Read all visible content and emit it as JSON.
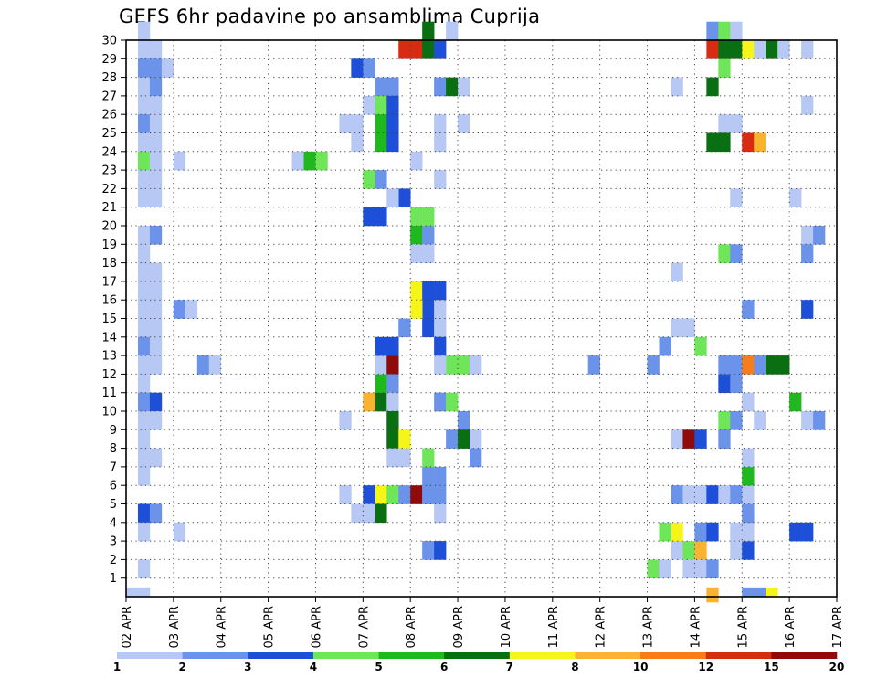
{
  "title": "GEFS 6hr padavine po ansamblima Cuprija",
  "chart_data": {
    "type": "heatmap",
    "title": "GEFS 6hr padavine po ansamblima Cuprija",
    "x_ticks": [
      "02 APR",
      "03 APR",
      "04 APR",
      "05 APR",
      "06 APR",
      "07 APR",
      "08 APR",
      "09 APR",
      "10 APR",
      "11 APR",
      "12 APR",
      "13 APR",
      "14 APR",
      "15 APR",
      "16 APR",
      "17 APR"
    ],
    "y_ticks": [
      1,
      2,
      3,
      4,
      5,
      6,
      7,
      8,
      9,
      10,
      11,
      12,
      13,
      14,
      15,
      16,
      17,
      18,
      19,
      20,
      21,
      22,
      23,
      24,
      25,
      26,
      27,
      28,
      29,
      30
    ],
    "steps_per_day": 4,
    "x_range_steps": [
      0,
      60
    ],
    "y_range_members": [
      0,
      30
    ],
    "grid": true,
    "colorbar": {
      "labels": [
        "1",
        "2",
        "3",
        "4",
        "5",
        "6",
        "7",
        "8",
        "10",
        "12",
        "15",
        "20"
      ],
      "colors": [
        "#b7c8f5",
        "#6b93ea",
        "#1e4fd8",
        "#6fe65a",
        "#1fb81f",
        "#0a6e12",
        "#f5f51a",
        "#f9b32e",
        "#f77c1c",
        "#d82c12",
        "#8f0a0a"
      ]
    },
    "cells": [
      [
        1,
        30,
        0
      ],
      [
        1,
        29,
        0
      ],
      [
        1,
        28,
        1
      ],
      [
        1,
        27,
        0
      ],
      [
        1,
        26,
        0
      ],
      [
        1,
        25,
        1
      ],
      [
        1,
        24,
        0
      ],
      [
        1,
        23,
        3
      ],
      [
        1,
        22,
        0
      ],
      [
        1,
        21,
        0
      ],
      [
        1,
        19,
        0
      ],
      [
        1,
        18,
        0
      ],
      [
        1,
        17,
        0
      ],
      [
        1,
        16,
        0
      ],
      [
        1,
        15,
        0
      ],
      [
        1,
        14,
        0
      ],
      [
        1,
        13,
        1
      ],
      [
        1,
        12,
        0
      ],
      [
        1,
        11,
        0
      ],
      [
        1,
        10,
        1
      ],
      [
        1,
        9,
        0
      ],
      [
        1,
        8,
        0
      ],
      [
        1,
        7,
        0
      ],
      [
        1,
        6,
        0
      ],
      [
        1,
        4,
        2
      ],
      [
        1,
        3,
        0
      ],
      [
        1,
        1,
        0
      ],
      [
        0,
        0,
        0
      ],
      [
        1,
        0,
        0
      ],
      [
        2,
        29,
        0
      ],
      [
        2,
        28,
        1
      ],
      [
        2,
        27,
        1
      ],
      [
        2,
        26,
        0
      ],
      [
        2,
        25,
        0
      ],
      [
        2,
        24,
        0
      ],
      [
        2,
        23,
        0
      ],
      [
        2,
        22,
        0
      ],
      [
        2,
        21,
        0
      ],
      [
        2,
        19,
        1
      ],
      [
        2,
        17,
        0
      ],
      [
        2,
        16,
        0
      ],
      [
        2,
        15,
        0
      ],
      [
        2,
        14,
        0
      ],
      [
        2,
        13,
        0
      ],
      [
        2,
        12,
        0
      ],
      [
        2,
        10,
        2
      ],
      [
        2,
        9,
        0
      ],
      [
        2,
        7,
        0
      ],
      [
        2,
        4,
        1
      ],
      [
        3,
        28,
        0
      ],
      [
        4,
        23,
        0
      ],
      [
        4,
        15,
        1
      ],
      [
        5,
        15,
        0
      ],
      [
        4,
        3,
        0
      ],
      [
        6,
        12,
        1
      ],
      [
        7,
        12,
        0
      ],
      [
        14,
        23,
        0
      ],
      [
        15,
        23,
        4
      ],
      [
        16,
        23,
        3
      ],
      [
        19,
        28,
        2
      ],
      [
        20,
        28,
        1
      ],
      [
        19,
        24,
        0
      ],
      [
        18,
        25,
        0
      ],
      [
        19,
        25,
        0
      ],
      [
        18,
        9,
        0
      ],
      [
        18,
        5,
        0
      ],
      [
        19,
        4,
        0
      ],
      [
        21,
        27,
        1
      ],
      [
        22,
        27,
        1
      ],
      [
        20,
        26,
        0
      ],
      [
        21,
        26,
        3
      ],
      [
        22,
        26,
        2
      ],
      [
        21,
        25,
        4
      ],
      [
        22,
        25,
        2
      ],
      [
        21,
        24,
        4
      ],
      [
        22,
        24,
        2
      ],
      [
        20,
        22,
        3
      ],
      [
        21,
        22,
        1
      ],
      [
        21,
        20,
        2
      ],
      [
        20,
        20,
        2
      ],
      [
        20,
        10,
        7
      ],
      [
        21,
        10,
        5
      ],
      [
        21,
        11,
        4
      ],
      [
        21,
        12,
        0
      ],
      [
        22,
        12,
        10
      ],
      [
        22,
        11,
        1
      ],
      [
        21,
        13,
        2
      ],
      [
        22,
        13,
        2
      ],
      [
        22,
        10,
        0
      ],
      [
        22,
        9,
        5
      ],
      [
        22,
        8,
        5
      ],
      [
        22,
        7,
        0
      ],
      [
        20,
        5,
        2
      ],
      [
        21,
        5,
        6
      ],
      [
        22,
        5,
        3
      ],
      [
        21,
        4,
        5
      ],
      [
        20,
        4,
        0
      ],
      [
        24,
        29,
        9
      ],
      [
        23,
        29,
        9
      ],
      [
        25,
        29,
        5
      ],
      [
        25,
        30,
        5
      ],
      [
        23,
        21,
        2
      ],
      [
        22,
        21,
        0
      ],
      [
        24,
        23,
        0
      ],
      [
        24,
        20,
        3
      ],
      [
        24,
        19,
        4
      ],
      [
        24,
        18,
        0
      ],
      [
        25,
        19,
        1
      ],
      [
        24,
        16,
        6
      ],
      [
        25,
        16,
        2
      ],
      [
        25,
        15,
        2
      ],
      [
        24,
        15,
        6
      ],
      [
        23,
        14,
        1
      ],
      [
        25,
        14,
        2
      ],
      [
        23,
        5,
        1
      ],
      [
        24,
        5,
        10
      ],
      [
        25,
        5,
        1
      ],
      [
        23,
        8,
        6
      ],
      [
        23,
        7,
        0
      ],
      [
        26,
        29,
        2
      ],
      [
        27,
        30,
        0
      ],
      [
        26,
        27,
        1
      ],
      [
        27,
        27,
        5
      ],
      [
        28,
        27,
        0
      ],
      [
        26,
        25,
        0
      ],
      [
        28,
        25,
        0
      ],
      [
        26,
        24,
        0
      ],
      [
        26,
        22,
        0
      ],
      [
        25,
        20,
        3
      ],
      [
        25,
        18,
        0
      ],
      [
        26,
        16,
        2
      ],
      [
        26,
        15,
        0
      ],
      [
        26,
        14,
        0
      ],
      [
        26,
        13,
        2
      ],
      [
        27,
        12,
        3
      ],
      [
        26,
        12,
        0
      ],
      [
        28,
        12,
        3
      ],
      [
        29,
        12,
        0
      ],
      [
        26,
        10,
        1
      ],
      [
        27,
        10,
        3
      ],
      [
        28,
        9,
        1
      ],
      [
        27,
        8,
        1
      ],
      [
        28,
        8,
        5
      ],
      [
        29,
        8,
        0
      ],
      [
        29,
        7,
        1
      ],
      [
        26,
        6,
        1
      ],
      [
        25,
        6,
        1
      ],
      [
        25,
        5,
        1
      ],
      [
        26,
        5,
        1
      ],
      [
        26,
        4,
        0
      ],
      [
        25,
        2,
        1
      ],
      [
        26,
        2,
        2
      ],
      [
        25,
        7,
        3
      ],
      [
        39,
        12,
        1
      ],
      [
        44,
        12,
        1
      ],
      [
        45,
        13,
        1
      ],
      [
        44,
        1,
        3
      ],
      [
        45,
        1,
        0
      ],
      [
        45,
        3,
        3
      ],
      [
        46,
        3,
        6
      ],
      [
        46,
        2,
        0
      ],
      [
        46,
        14,
        0
      ],
      [
        46,
        17,
        0
      ],
      [
        46,
        27,
        0
      ],
      [
        46,
        5,
        1
      ],
      [
        46,
        8,
        0
      ],
      [
        47,
        8,
        10
      ],
      [
        48,
        8,
        2
      ],
      [
        47,
        2,
        3
      ],
      [
        48,
        2,
        7
      ],
      [
        47,
        1,
        0
      ],
      [
        48,
        1,
        0
      ],
      [
        48,
        3,
        1
      ],
      [
        49,
        3,
        2
      ],
      [
        47,
        5,
        0
      ],
      [
        48,
        5,
        0
      ],
      [
        48,
        13,
        3
      ],
      [
        47,
        14,
        0
      ],
      [
        49,
        30,
        1
      ],
      [
        50,
        30,
        3
      ],
      [
        49,
        5,
        2
      ],
      [
        50,
        5,
        0
      ],
      [
        49,
        0,
        7
      ],
      [
        49,
        1,
        1
      ],
      [
        50,
        11,
        2
      ],
      [
        51,
        11,
        1
      ],
      [
        50,
        12,
        1
      ],
      [
        51,
        12,
        1
      ],
      [
        50,
        18,
        3
      ],
      [
        51,
        18,
        1
      ],
      [
        50,
        9,
        3
      ],
      [
        50,
        8,
        1
      ],
      [
        50,
        25,
        0
      ],
      [
        51,
        25,
        0
      ],
      [
        49,
        24,
        5
      ],
      [
        50,
        24,
        5
      ],
      [
        49,
        27,
        5
      ],
      [
        50,
        28,
        3
      ],
      [
        49,
        29,
        9
      ],
      [
        50,
        29,
        5
      ],
      [
        51,
        29,
        5
      ],
      [
        52,
        29,
        6
      ],
      [
        53,
        29,
        0
      ],
      [
        54,
        29,
        5
      ],
      [
        55,
        29,
        0
      ],
      [
        57,
        29,
        0
      ],
      [
        51,
        30,
        0
      ],
      [
        52,
        24,
        9
      ],
      [
        53,
        24,
        7
      ],
      [
        51,
        21,
        0
      ],
      [
        51,
        2,
        0
      ],
      [
        52,
        2,
        2
      ],
      [
        51,
        3,
        0
      ],
      [
        52,
        3,
        0
      ],
      [
        52,
        4,
        1
      ],
      [
        51,
        5,
        1
      ],
      [
        52,
        5,
        0
      ],
      [
        52,
        6,
        4
      ],
      [
        52,
        7,
        0
      ],
      [
        51,
        9,
        1
      ],
      [
        53,
        9,
        0
      ],
      [
        52,
        12,
        8
      ],
      [
        53,
        12,
        1
      ],
      [
        54,
        12,
        5
      ],
      [
        55,
        12,
        5
      ],
      [
        52,
        15,
        1
      ],
      [
        52,
        10,
        0
      ],
      [
        56,
        21,
        0
      ],
      [
        57,
        19,
        0
      ],
      [
        58,
        19,
        1
      ],
      [
        57,
        18,
        1
      ],
      [
        57,
        15,
        2
      ],
      [
        56,
        10,
        4
      ],
      [
        57,
        9,
        0
      ],
      [
        58,
        9,
        1
      ],
      [
        57,
        26,
        0
      ],
      [
        56,
        3,
        2
      ],
      [
        57,
        3,
        2
      ],
      [
        52,
        0,
        1
      ],
      [
        53,
        0,
        1
      ],
      [
        54,
        0,
        6
      ],
      [
        49,
        -1,
        7
      ]
    ]
  }
}
